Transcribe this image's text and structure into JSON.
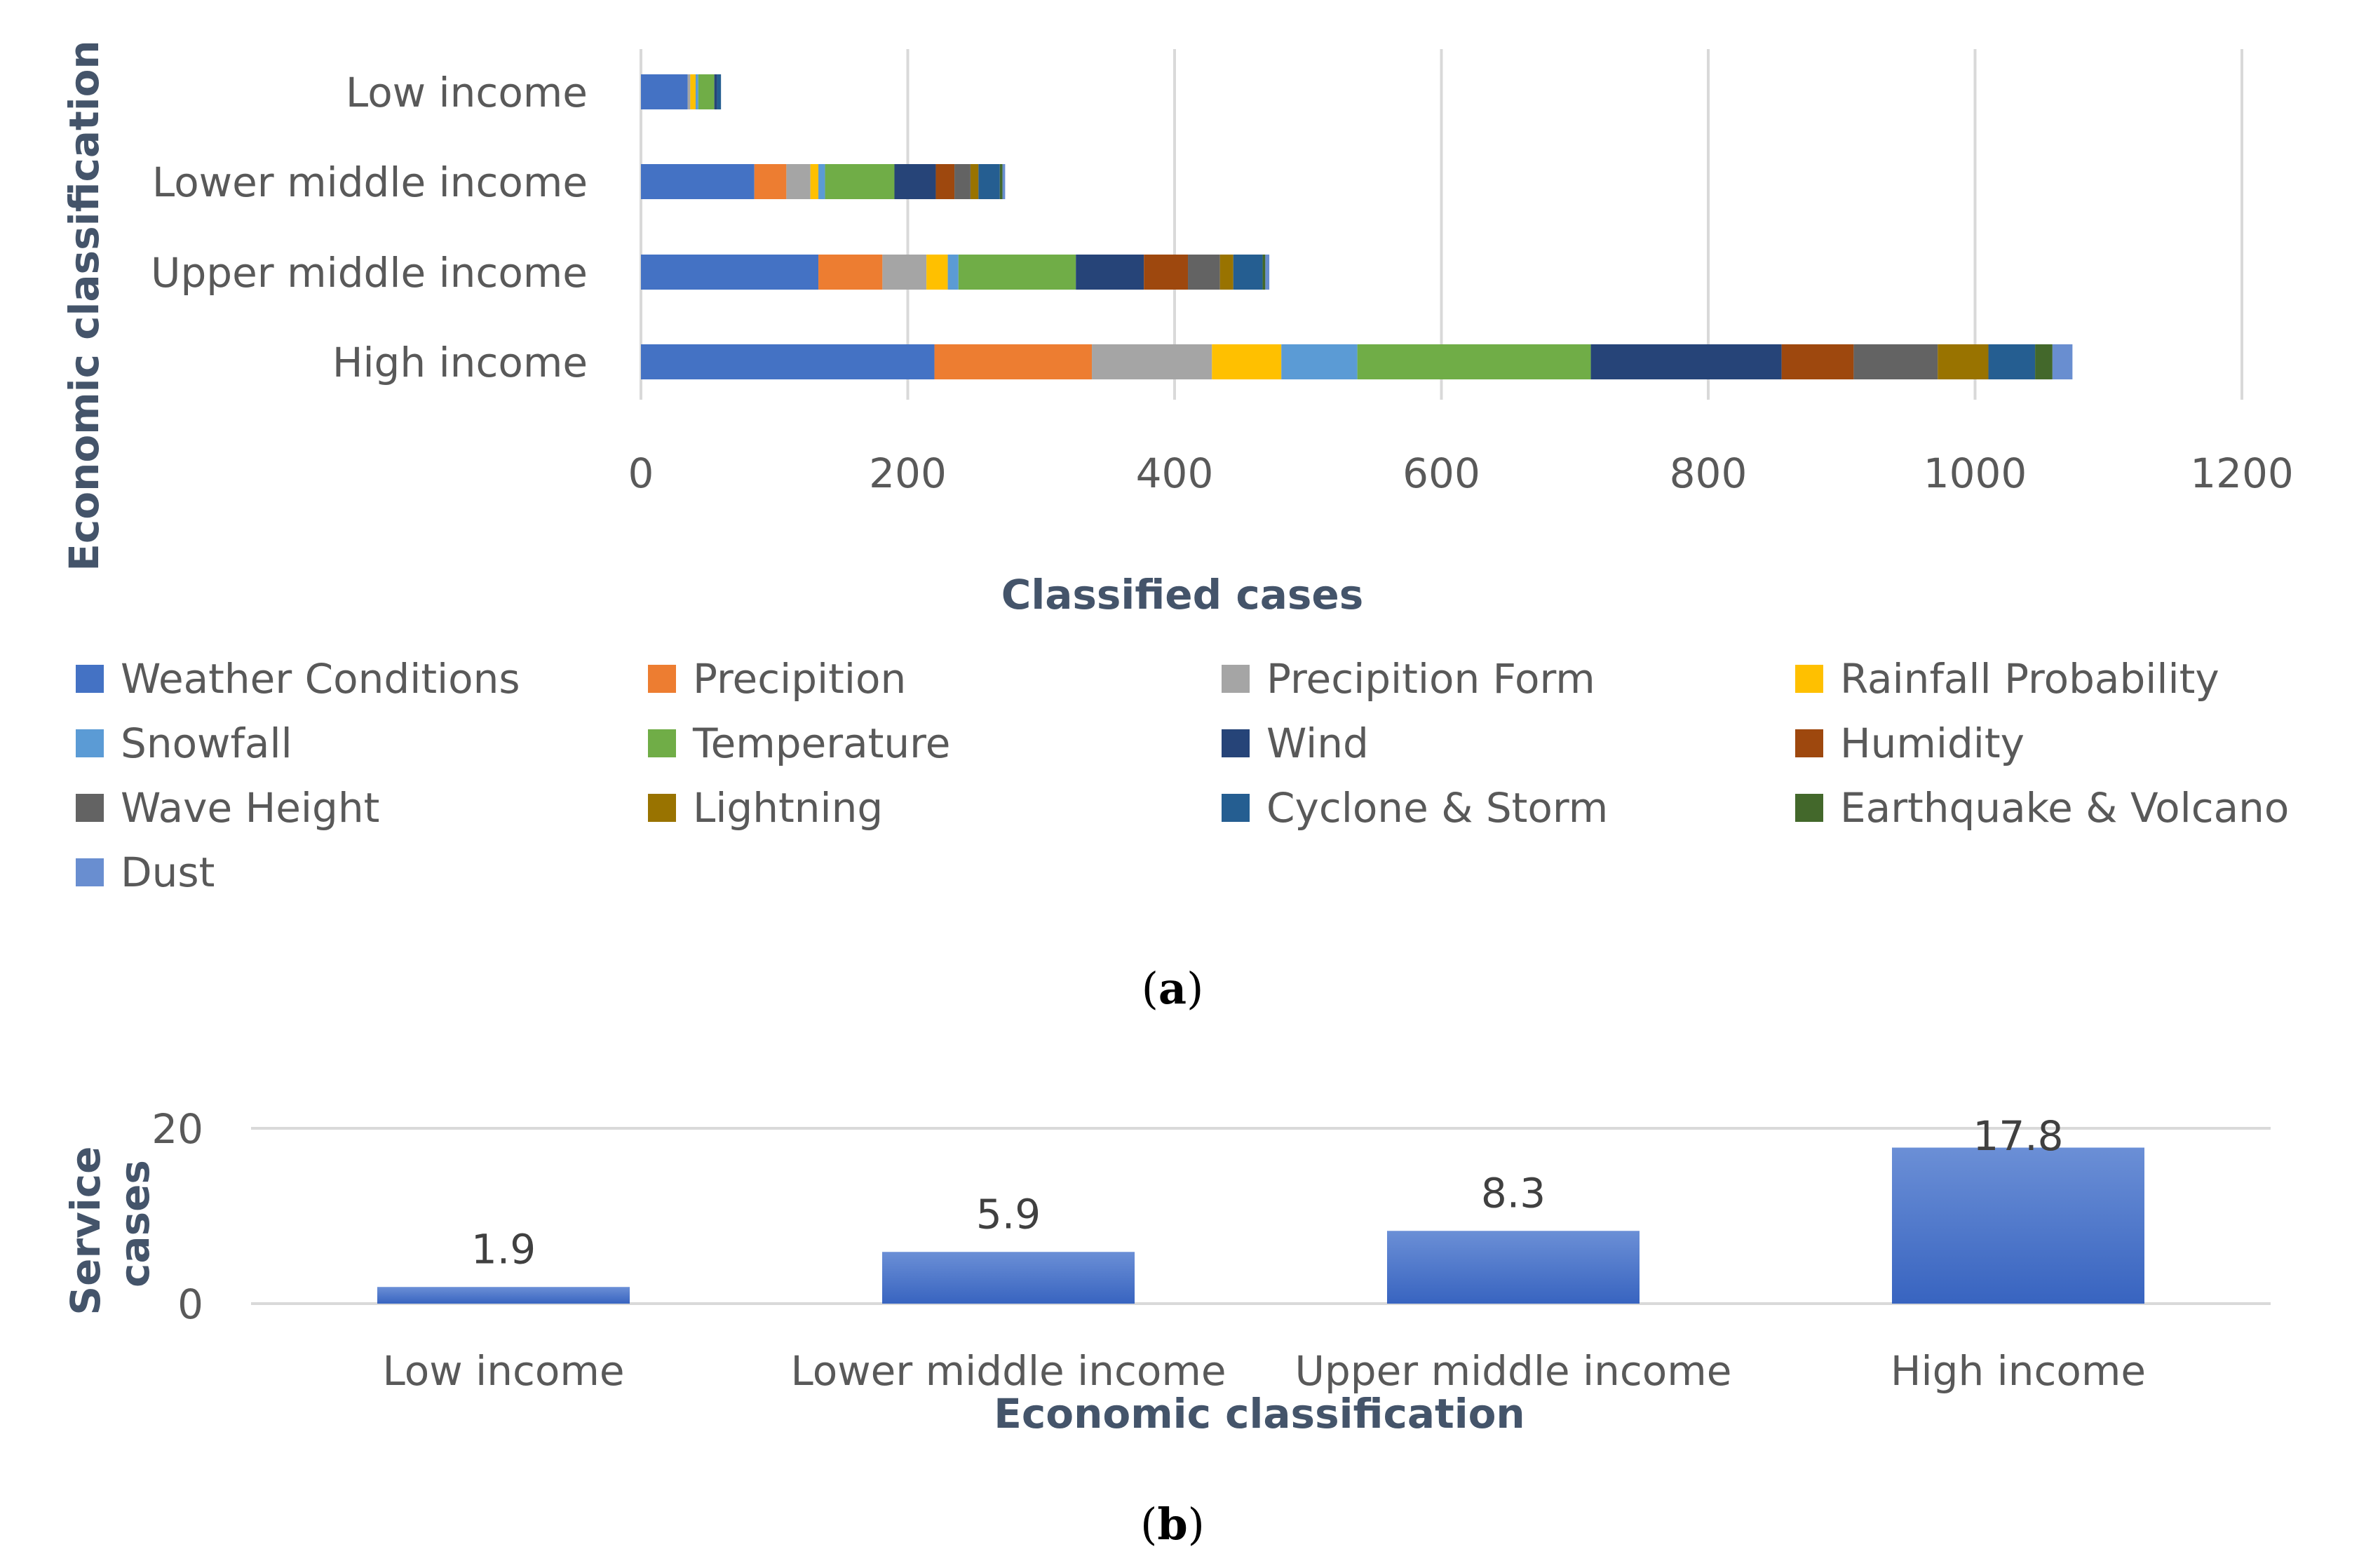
{
  "chart_data": [
    {
      "panel": "(a)",
      "type": "bar",
      "orientation": "horizontal",
      "stacked": true,
      "categories": [
        "Low income",
        "Lower middle income",
        "Upper middle income",
        "High income"
      ],
      "xlabel": "Classified cases",
      "ylabel": "Economic classification",
      "xlim": [
        0,
        1200
      ],
      "xticks": [
        "0",
        "200",
        "400",
        "600",
        "800",
        "1000",
        "1200"
      ],
      "grid": true,
      "legend_position": "bottom",
      "series": [
        {
          "name": "Weather Conditions",
          "color": "#4472c4",
          "values": [
            35,
            85,
            133,
            220
          ]
        },
        {
          "name": "Precipition",
          "color": "#ed7d31",
          "values": [
            0,
            24,
            48,
            118
          ]
        },
        {
          "name": "Precipition Form",
          "color": "#a5a5a5",
          "values": [
            2,
            18,
            33,
            90
          ]
        },
        {
          "name": "Rainfall Probability",
          "color": "#ffc000",
          "values": [
            4,
            6,
            16,
            52
          ]
        },
        {
          "name": "Snowfall",
          "color": "#5b9bd5",
          "values": [
            2,
            5,
            8,
            57
          ]
        },
        {
          "name": "Temperature",
          "color": "#70ad47",
          "values": [
            12,
            52,
            88,
            175
          ]
        },
        {
          "name": "Wind",
          "color": "#264478",
          "values": [
            2,
            31,
            51,
            143
          ]
        },
        {
          "name": "Humidity",
          "color": "#9e480e",
          "values": [
            0,
            14,
            33,
            54
          ]
        },
        {
          "name": "Wave Height",
          "color": "#636363",
          "values": [
            0,
            12,
            24,
            63
          ]
        },
        {
          "name": "Lightning",
          "color": "#997300",
          "values": [
            0,
            6,
            10,
            38
          ]
        },
        {
          "name": "Cyclone & Storm",
          "color": "#255e91",
          "values": [
            3,
            16,
            22,
            35
          ]
        },
        {
          "name": "Earthquake & Volcano",
          "color": "#43682b",
          "values": [
            0,
            2,
            2,
            13
          ]
        },
        {
          "name": "Dust",
          "color": "#698ed0",
          "values": [
            0,
            2,
            3,
            15
          ]
        }
      ]
    },
    {
      "panel": "(b)",
      "type": "bar",
      "orientation": "vertical",
      "categories": [
        "Low income",
        "Lower middle income",
        "Upper middle income",
        "High income"
      ],
      "values": [
        1.9,
        5.9,
        8.3,
        17.8
      ],
      "value_labels": [
        "1.9",
        "5.9",
        "8.3",
        "17.8"
      ],
      "xlabel": "Economic classification",
      "ylabel": [
        "Service",
        "cases"
      ],
      "ylim": [
        0,
        20
      ],
      "yticks": [
        "0",
        "20"
      ],
      "color": "#4472c4",
      "grid": true
    }
  ],
  "panel_labels": {
    "a": {
      "open": "(",
      "letter": "a",
      "close": ")"
    },
    "b": {
      "open": "(",
      "letter": "b",
      "close": ")"
    }
  }
}
